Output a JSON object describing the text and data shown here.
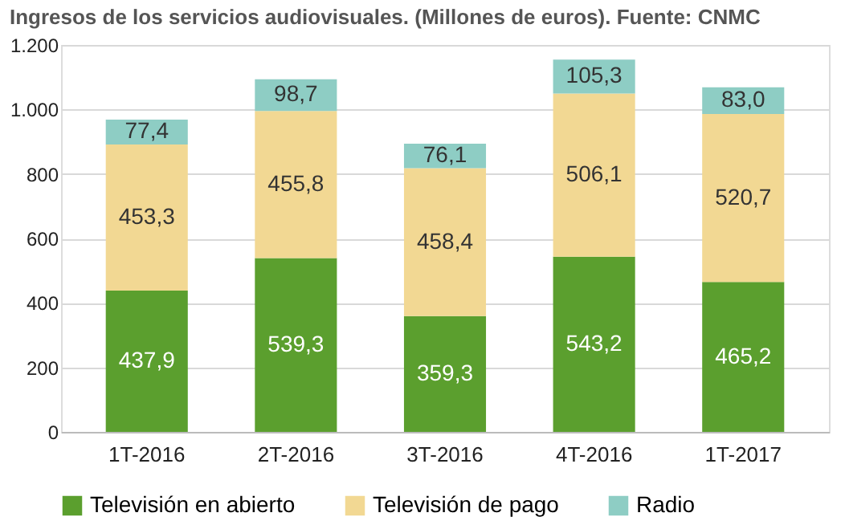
{
  "chart_data": {
    "type": "bar",
    "title": "Ingresos de los servicios audiovisuales. (Millones de euros). Fuente: CNMC",
    "categories": [
      "1T-2016",
      "2T-2016",
      "3T-2016",
      "4T-2016",
      "1T-2017"
    ],
    "stacked": true,
    "series": [
      {
        "name": "Televisión en abierto",
        "color": "#5b9f2e",
        "values": [
          437.9,
          539.3,
          359.3,
          543.2,
          465.2
        ],
        "value_labels": [
          "437,9",
          "539,3",
          "359,3",
          "543,2",
          "465,2"
        ]
      },
      {
        "name": "Televisión de pago",
        "color": "#f2d893",
        "values": [
          453.3,
          455.8,
          458.4,
          506.1,
          520.7
        ],
        "value_labels": [
          "453,3",
          "455,8",
          "458,4",
          "506,1",
          "520,7"
        ]
      },
      {
        "name": "Radio",
        "color": "#8ecdc4",
        "values": [
          77.4,
          98.7,
          76.1,
          105.3,
          83.0
        ],
        "value_labels": [
          "77,4",
          "98,7",
          "76,1",
          "105,3",
          "83,0"
        ]
      }
    ],
    "ylim": [
      0,
      1200
    ],
    "yticks": [
      0,
      200,
      400,
      600,
      800,
      {
        "value": 1000,
        "label": "1.000"
      },
      {
        "value": 1200,
        "label": "1.200"
      }
    ],
    "grid": "y",
    "legend": "bottom"
  }
}
